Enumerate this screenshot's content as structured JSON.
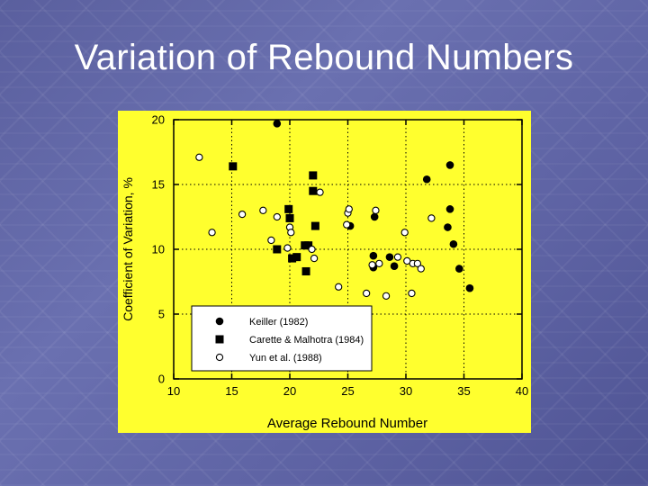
{
  "slide": {
    "title": "Variation of Rebound Numbers",
    "background_color": "#5d62a3",
    "title_color": "#ffffff"
  },
  "chart_data": {
    "type": "scatter",
    "title": "",
    "xlabel": "Average Rebound Number",
    "ylabel": "Coefficient of Variation, %",
    "xlim": [
      10,
      40
    ],
    "ylim": [
      0,
      20
    ],
    "xticks": [
      "10",
      "15",
      "20",
      "25",
      "30",
      "35",
      "40"
    ],
    "yticks": [
      "0",
      "5",
      "10",
      "15",
      "20"
    ],
    "grid": "dotted",
    "legend_position": "bottom-left",
    "plot_background": "#ffff2e",
    "series": [
      {
        "name": "Keiller (1982)",
        "marker": "filled-circle",
        "points": [
          [
            18.9,
            19.7
          ],
          [
            25.2,
            11.8
          ],
          [
            27.3,
            12.5
          ],
          [
            27.2,
            9.5
          ],
          [
            27.2,
            8.6
          ],
          [
            28.6,
            9.4
          ],
          [
            29.0,
            8.7
          ],
          [
            31.8,
            15.4
          ],
          [
            33.6,
            11.7
          ],
          [
            33.8,
            16.5
          ],
          [
            33.8,
            13.1
          ],
          [
            34.1,
            10.4
          ],
          [
            34.6,
            8.5
          ],
          [
            35.5,
            7.0
          ]
        ]
      },
      {
        "name": "Carette & Malhotra (1984)",
        "marker": "filled-square",
        "points": [
          [
            15.1,
            16.4
          ],
          [
            18.9,
            10.0
          ],
          [
            19.9,
            13.1
          ],
          [
            20.0,
            12.4
          ],
          [
            20.2,
            9.3
          ],
          [
            20.6,
            9.4
          ],
          [
            21.3,
            10.3
          ],
          [
            21.6,
            10.3
          ],
          [
            21.4,
            8.3
          ],
          [
            22.0,
            15.7
          ],
          [
            22.0,
            14.5
          ],
          [
            22.2,
            11.8
          ]
        ]
      },
      {
        "name": "Yun et al. (1988)",
        "marker": "open-circle",
        "points": [
          [
            12.2,
            17.1
          ],
          [
            13.3,
            11.3
          ],
          [
            15.9,
            12.7
          ],
          [
            17.7,
            13.0
          ],
          [
            18.4,
            10.7
          ],
          [
            18.9,
            12.5
          ],
          [
            19.8,
            10.1
          ],
          [
            20.0,
            11.7
          ],
          [
            20.1,
            11.3
          ],
          [
            21.9,
            10.0
          ],
          [
            22.1,
            9.3
          ],
          [
            22.6,
            14.4
          ],
          [
            24.2,
            7.1
          ],
          [
            24.9,
            11.9
          ],
          [
            25.0,
            12.8
          ],
          [
            25.1,
            13.1
          ],
          [
            26.6,
            6.6
          ],
          [
            27.1,
            8.8
          ],
          [
            27.4,
            13.0
          ],
          [
            27.7,
            8.9
          ],
          [
            28.3,
            6.4
          ],
          [
            29.3,
            9.4
          ],
          [
            29.9,
            11.3
          ],
          [
            30.1,
            9.1
          ],
          [
            30.5,
            6.6
          ],
          [
            30.6,
            8.9
          ],
          [
            31.0,
            8.9
          ],
          [
            31.3,
            8.5
          ],
          [
            32.2,
            12.4
          ]
        ]
      }
    ]
  }
}
